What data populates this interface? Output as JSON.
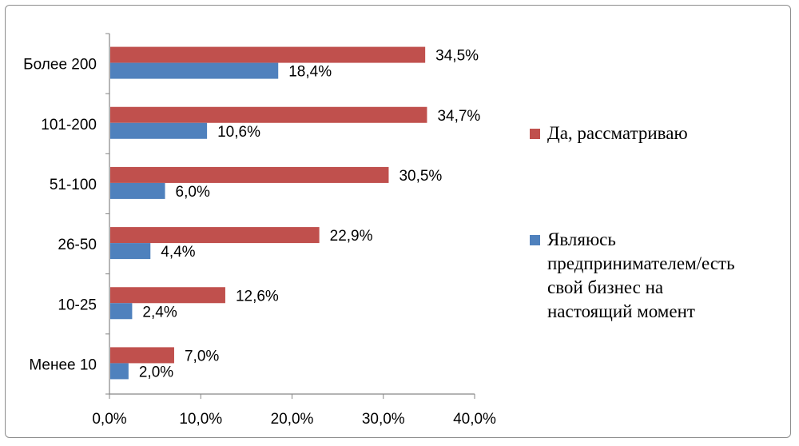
{
  "chart_data": {
    "type": "bar",
    "orientation": "horizontal",
    "categories": [
      "Более 200",
      "101-200",
      "51-100",
      "26-50",
      "10-25",
      "Менее 10"
    ],
    "series": [
      {
        "name": "Да, рассматриваю",
        "values": [
          34.5,
          34.7,
          30.5,
          22.9,
          12.6,
          7.0
        ],
        "labels": [
          "34,5%",
          "34,7%",
          "30,5%",
          "22,9%",
          "12,6%",
          "7,0%"
        ],
        "color": "#c0504d"
      },
      {
        "name": "Являюсь предпринимателем/есть свой бизнес на настоящий момент",
        "values": [
          18.4,
          10.6,
          6.0,
          4.4,
          2.4,
          2.0
        ],
        "labels": [
          "18,4%",
          "10,6%",
          "6,0%",
          "4,4%",
          "2,4%",
          "2,0%"
        ],
        "color": "#4f81bd"
      }
    ],
    "xlim": [
      0,
      40
    ],
    "x_ticks": [
      "0,0%",
      "10,0%",
      "20,0%",
      "30,0%",
      "40,0%"
    ],
    "grid": false,
    "legend_position": "right",
    "title": "",
    "xlabel": "",
    "ylabel": ""
  },
  "legend": {
    "item1": "Да, рассматриваю",
    "item2_lines": [
      "Являюсь",
      "предпринимателем/есть",
      "свой бизнес на",
      "настоящий момент"
    ]
  }
}
